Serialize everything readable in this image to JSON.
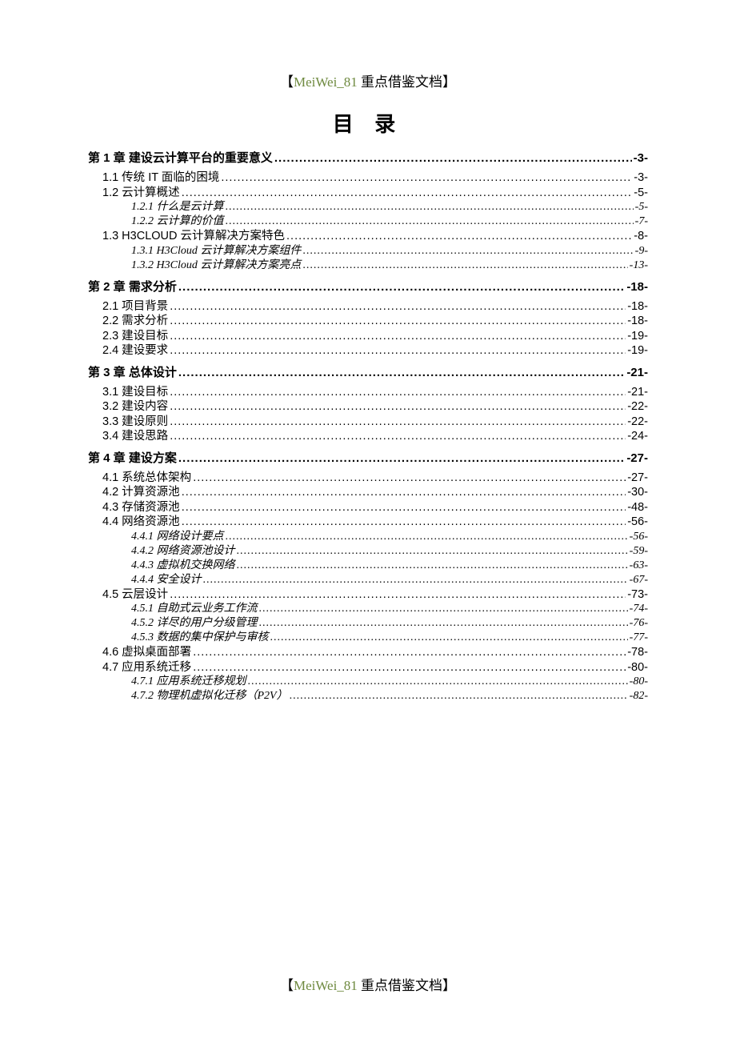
{
  "header_prefix": "【",
  "header_colored": "MeiWei_81",
  "header_rest": " 重点借鉴文档】",
  "title": "目 录",
  "footer_prefix": "【",
  "footer_colored": "MeiWei_81",
  "footer_rest": " 重点借鉴文档】",
  "toc": [
    {
      "level": 1,
      "label": "第 1 章  建设云计算平台的重要意义",
      "page": "-3-"
    },
    {
      "level": 2,
      "label": "1.1 传统 IT 面临的困境",
      "page": "-3-"
    },
    {
      "level": 2,
      "label": "1.2 云计算概述",
      "page": "-5-"
    },
    {
      "level": 3,
      "label": "1.2.1  什么是云计算",
      "page": "-5-"
    },
    {
      "level": 3,
      "label": "1.2.2  云计算的价值",
      "page": "-7-"
    },
    {
      "level": 2,
      "label": "1.3 H3CLOUD 云计算解决方案特色",
      "page": "-8-",
      "smallcaps": true
    },
    {
      "level": 3,
      "label": "1.3.1 H3Cloud 云计算解决方案组件",
      "page": "-9-"
    },
    {
      "level": 3,
      "label": "1.3.2 H3Cloud 云计算解决方案亮点",
      "page": "-13-"
    },
    {
      "level": 1,
      "label": "第 2 章  需求分析",
      "page": "-18-"
    },
    {
      "level": 2,
      "label": "2.1 项目背景",
      "page": "-18-"
    },
    {
      "level": 2,
      "label": "2.2 需求分析",
      "page": "-18-"
    },
    {
      "level": 2,
      "label": "2.3 建设目标",
      "page": "-19-"
    },
    {
      "level": 2,
      "label": "2.4 建设要求",
      "page": "-19-"
    },
    {
      "level": 1,
      "label": "第 3 章  总体设计",
      "page": "-21-"
    },
    {
      "level": 2,
      "label": "3.1 建设目标",
      "page": "-21-"
    },
    {
      "level": 2,
      "label": "3.2 建设内容",
      "page": "-22-"
    },
    {
      "level": 2,
      "label": "3.3 建设原则",
      "page": "-22-"
    },
    {
      "level": 2,
      "label": "3.4 建设思路",
      "page": "-24-"
    },
    {
      "level": 1,
      "label": "第 4 章  建设方案",
      "page": "-27-"
    },
    {
      "level": 2,
      "label": "4.1 系统总体架构",
      "page": "-27-"
    },
    {
      "level": 2,
      "label": "4.2 计算资源池",
      "page": "-30-"
    },
    {
      "level": 2,
      "label": "4.3 存储资源池",
      "page": "-48-"
    },
    {
      "level": 2,
      "label": "4.4 网络资源池",
      "page": "-56-"
    },
    {
      "level": 3,
      "label": "4.4.1  网络设计要点",
      "page": "-56-"
    },
    {
      "level": 3,
      "label": "4.4.2  网络资源池设计",
      "page": "-59-"
    },
    {
      "level": 3,
      "label": "4.4.3  虚拟机交换网络",
      "page": "-63-"
    },
    {
      "level": 3,
      "label": "4.4.4  安全设计",
      "page": "-67-"
    },
    {
      "level": 2,
      "label": "4.5 云层设计",
      "page": "-73-"
    },
    {
      "level": 3,
      "label": "4.5.1  自助式云业务工作流",
      "page": "-74-"
    },
    {
      "level": 3,
      "label": "4.5.2  详尽的用户分级管理",
      "page": "-76-"
    },
    {
      "level": 3,
      "label": "4.5.3  数据的集中保护与审核",
      "page": "-77-"
    },
    {
      "level": 2,
      "label": "4.6 虚拟桌面部署",
      "page": "-78-"
    },
    {
      "level": 2,
      "label": "4.7 应用系统迁移",
      "page": "-80-"
    },
    {
      "level": 3,
      "label": "4.7.1  应用系统迁移规划",
      "page": "-80-"
    },
    {
      "level": 3,
      "label": "4.7.2  物理机虚拟化迁移（P2V）",
      "page": "-82-"
    }
  ]
}
